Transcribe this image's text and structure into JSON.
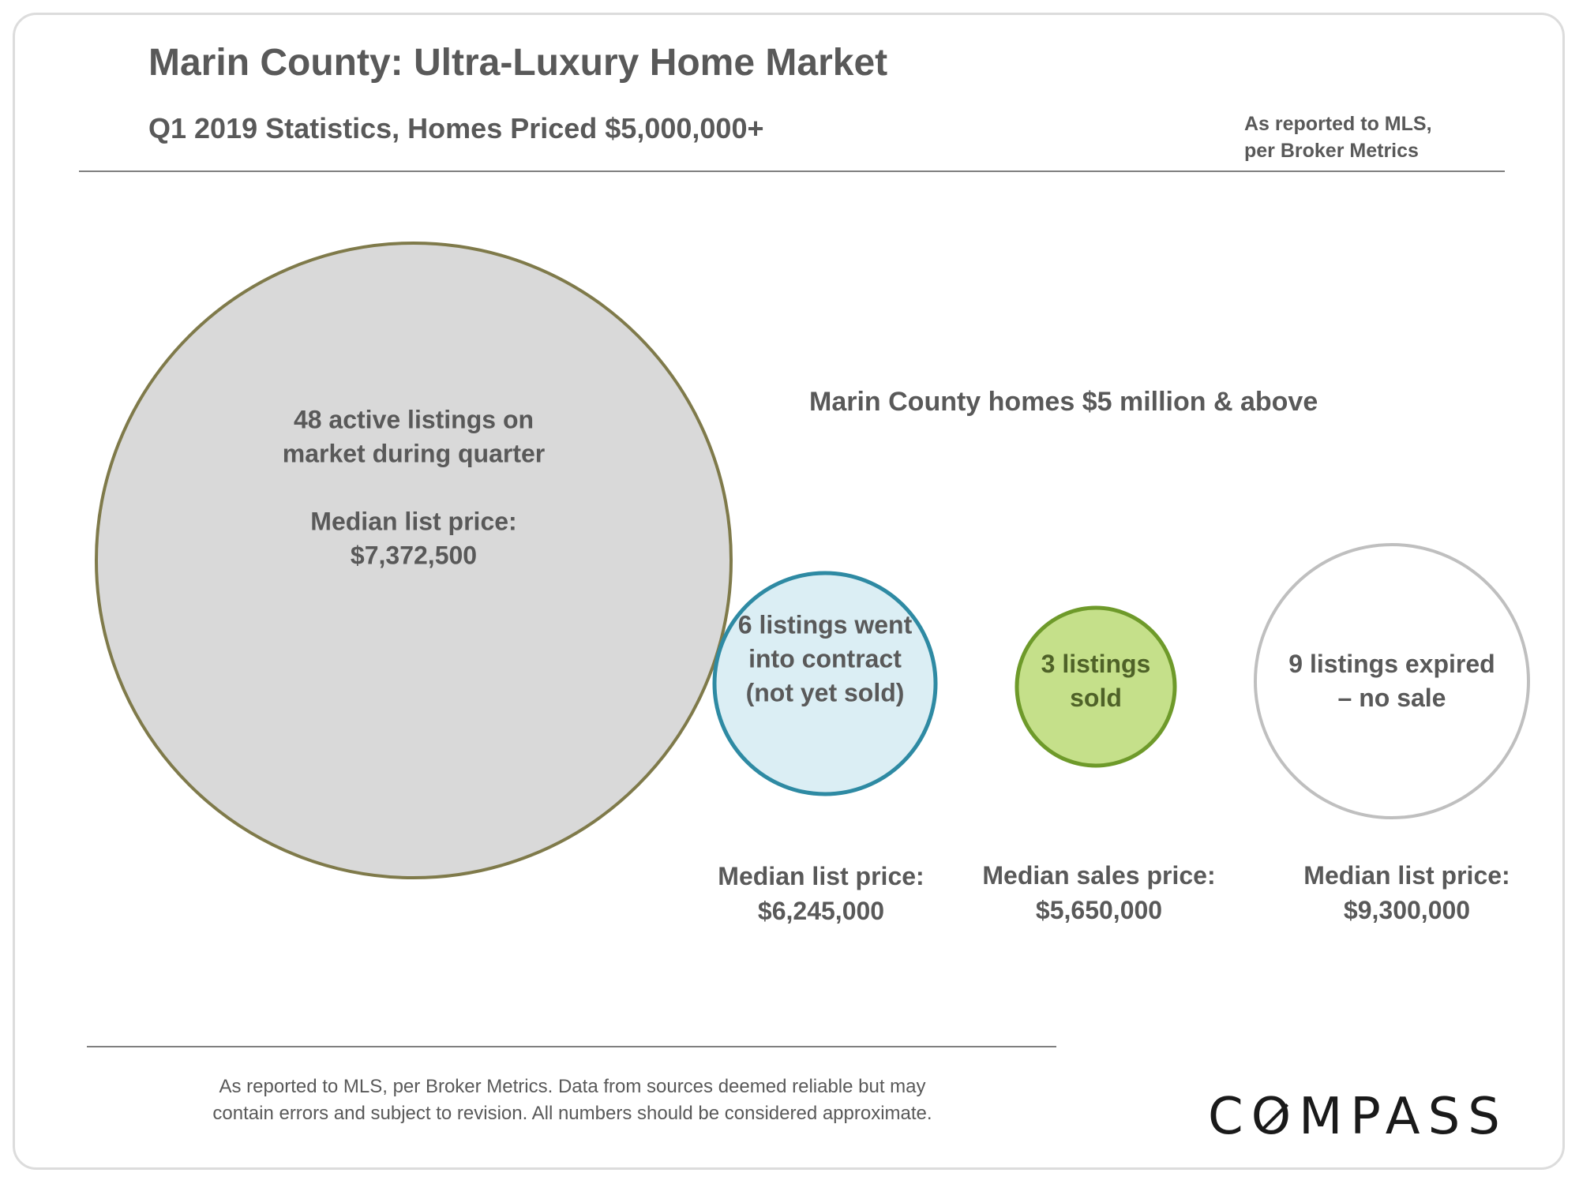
{
  "header": {
    "title": "Marin County: Ultra-Luxury Home Market",
    "subtitle": "Q1 2019 Statistics, Homes Priced $5,000,000+",
    "source_line1": "As reported to MLS,",
    "source_line2": "per Broker Metrics"
  },
  "chart_data": {
    "type": "bubble",
    "title": "Marin County homes $5 million & above",
    "series": [
      {
        "name": "active",
        "count": 48,
        "label_lines": [
          "48 active listings on",
          "market during quarter",
          "",
          "Median list price:",
          "$7,372,500"
        ],
        "price_lines": [],
        "fill": "#d9d9d9",
        "stroke": "#7f7a4a",
        "text_color": "#595959"
      },
      {
        "name": "in-contract",
        "count": 6,
        "label_lines": [
          "6 listings went",
          "into contract",
          "(not yet sold)"
        ],
        "price_lines": [
          "Median list price:",
          "$6,245,000"
        ],
        "fill": "#dbeef4",
        "stroke": "#2e8aa3",
        "text_color": "#595959"
      },
      {
        "name": "sold",
        "count": 3,
        "label_lines": [
          "3 listings",
          "sold"
        ],
        "price_lines": [
          "Median sales price:",
          "$5,650,000"
        ],
        "fill": "#c5e08a",
        "stroke": "#6e9a2a",
        "text_color": "#4f6228"
      },
      {
        "name": "expired",
        "count": 9,
        "label_lines": [
          "9 listings expired",
          "– no sale"
        ],
        "price_lines": [
          "Median list price:",
          "$9,300,000"
        ],
        "fill": "#ffffff",
        "stroke": "#bfbfbf",
        "text_color": "#595959"
      }
    ]
  },
  "footer": {
    "note_line1": "As reported to MLS, per Broker Metrics. Data from sources deemed reliable but may",
    "note_line2": "contain errors and subject to revision. All numbers should be considered approximate.",
    "logo": "COMPASS"
  }
}
